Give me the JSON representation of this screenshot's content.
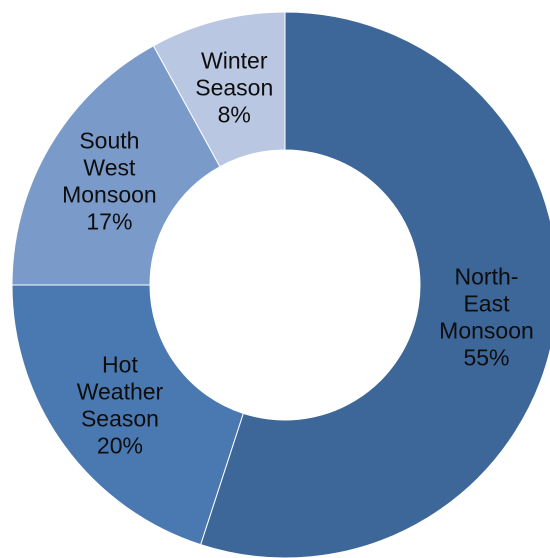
{
  "chart_data": {
    "type": "pie",
    "donut": true,
    "title": "",
    "legend": "none",
    "slices": [
      {
        "label": [
          "North-",
          "East",
          "Monsoon"
        ],
        "value": 55,
        "value_label": "55%",
        "color": "#3d6699"
      },
      {
        "label": [
          "Hot",
          "Weather",
          "Season"
        ],
        "value": 20,
        "value_label": "20%",
        "color": "#4a78b0"
      },
      {
        "label": [
          "South",
          "West",
          "Monsoon"
        ],
        "value": 17,
        "value_label": "17%",
        "color": "#7a9ac9"
      },
      {
        "label": [
          "Winter",
          "Season"
        ],
        "value": 8,
        "value_label": "8%",
        "color": "#b9c7e2"
      }
    ]
  }
}
